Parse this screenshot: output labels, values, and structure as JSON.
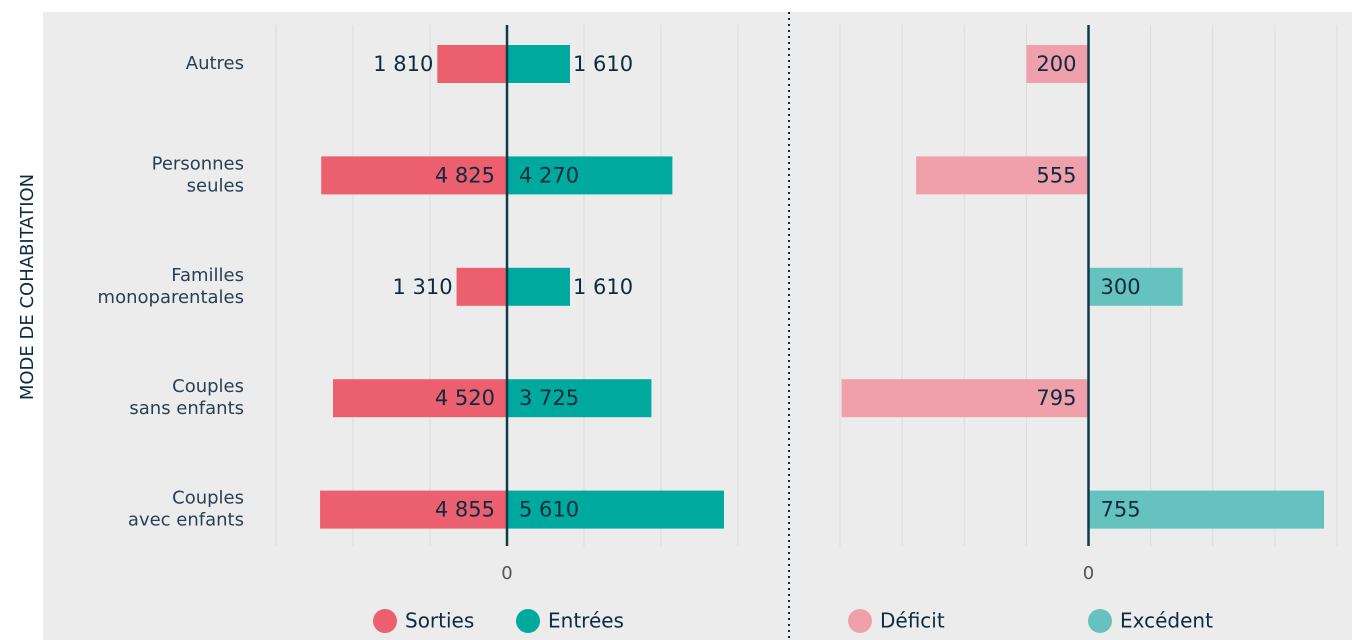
{
  "chart_data": [
    {
      "type": "diverging-bar",
      "ylabel": "MODE DE COHABITATION",
      "categories": [
        [
          "Autres"
        ],
        [
          "Personnes",
          "seules"
        ],
        [
          "Familles",
          "monoparentales"
        ],
        [
          "Couples",
          "sans enfants"
        ],
        [
          "Couples",
          "avec enfants"
        ]
      ],
      "series": [
        {
          "name": "Sorties",
          "color": "#ec5f6e",
          "direction": "left",
          "values": [
            1810,
            4825,
            1310,
            4520,
            4855
          ],
          "value_labels": [
            "1 810",
            "4 825",
            "1 310",
            "4 520",
            "4 855"
          ]
        },
        {
          "name": "Entrées",
          "color": "#00a99d",
          "direction": "right",
          "values": [
            1610,
            4270,
            1610,
            3725,
            5610
          ],
          "value_labels": [
            "1 610",
            "4 270",
            "1 610",
            "3 725",
            "5 610"
          ]
        }
      ],
      "xlim": [
        -6000,
        6000
      ],
      "xticks": [
        0
      ],
      "xgrid": [
        -6000,
        -4000,
        -2000,
        0,
        2000,
        4000,
        6000
      ]
    },
    {
      "type": "diverging-bar",
      "series": [
        {
          "name": "Déficit",
          "color": "#f0a0ab",
          "direction": "left",
          "values": [
            200,
            555,
            null,
            795,
            null
          ]
        },
        {
          "name": "Excédent",
          "color": "#66c2bf",
          "direction": "right",
          "values": [
            null,
            null,
            300,
            null,
            755
          ]
        }
      ],
      "xlim": [
        -800,
        800
      ],
      "xticks": [
        0
      ],
      "xgrid": [
        -800,
        -600,
        -400,
        -200,
        0,
        200,
        400,
        600,
        800
      ]
    }
  ]
}
